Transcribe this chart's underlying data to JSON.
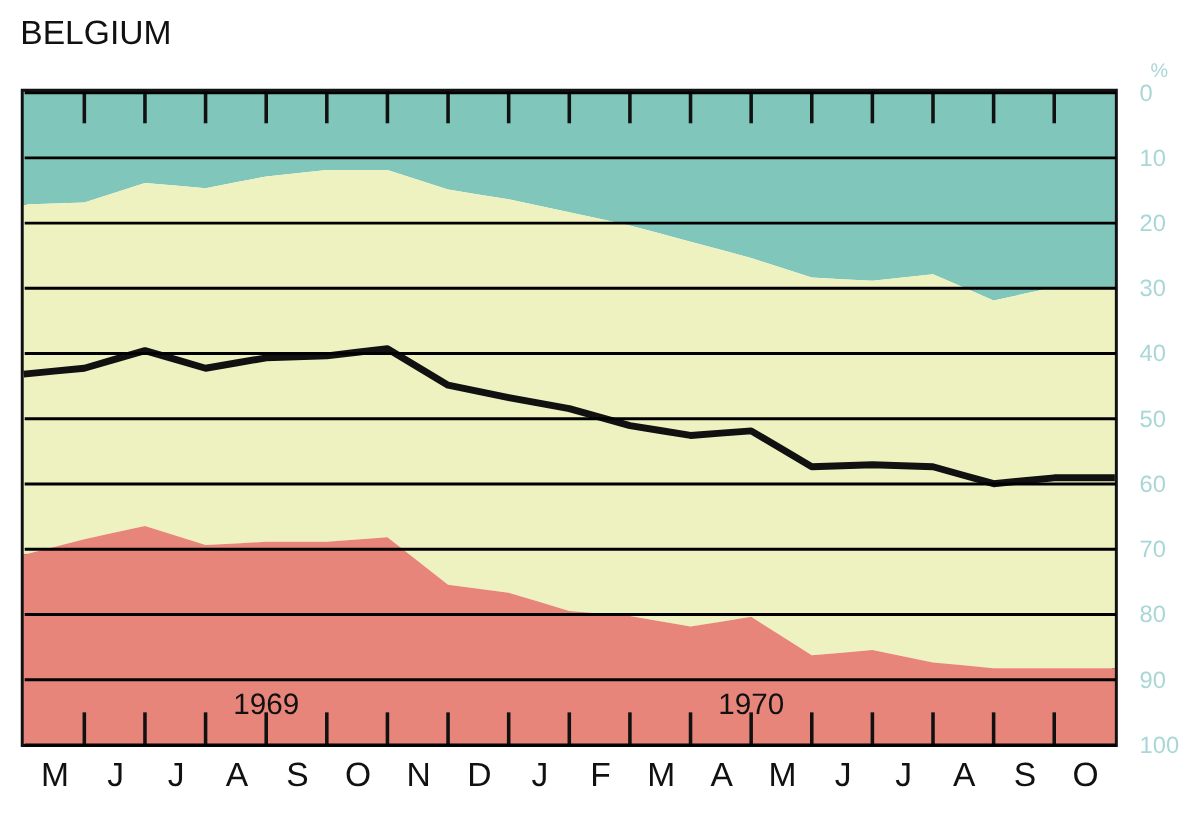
{
  "chart_data": {
    "type": "area",
    "title": "BELGIUM",
    "ylabel": "%",
    "stacked": true,
    "categories": [
      null,
      "M",
      null,
      "J",
      null,
      "J",
      null,
      "A",
      null,
      "S",
      null,
      "O",
      null,
      "N",
      null,
      "D",
      null,
      "J",
      null,
      "F",
      null,
      "M",
      null,
      "A",
      null,
      "M",
      null,
      "J",
      null,
      "J",
      null,
      "A",
      null,
      "S",
      null,
      "O",
      null
    ],
    "series": [
      {
        "color": "#80c6ba",
        "values": [
          17.3,
          17.15,
          17,
          15.5,
          14,
          14.4,
          14.8,
          13.9,
          13,
          12.5,
          12,
          12,
          12,
          13.5,
          15,
          15.75,
          16.5,
          17.5,
          18.5,
          19.5,
          20.5,
          21.75,
          23,
          24.25,
          25.5,
          27,
          28.5,
          28.75,
          29,
          28.5,
          28,
          30,
          32,
          31,
          30,
          30,
          30
        ]
      },
      {
        "color": "#eef2c0",
        "values": [
          53.7,
          52.65,
          51.6,
          52.1,
          52.6,
          53.65,
          54.7,
          55.35,
          56,
          56.5,
          57,
          56.65,
          56.3,
          58.45,
          60.6,
          60.45,
          60.3,
          60.7,
          61.1,
          60.5,
          59.9,
          59.45,
          59,
          57,
          55,
          56.45,
          57.9,
          57.25,
          56.6,
          58.05,
          59.5,
          57.95,
          56.4,
          57.4,
          58.4,
          58.4,
          58.4
        ]
      },
      {
        "color": "#e8857a",
        "values": [
          29,
          30.2,
          31.4,
          32.4,
          33.4,
          31.95,
          30.5,
          30.75,
          31,
          31,
          31,
          31.35,
          31.7,
          28.05,
          24.4,
          23.8,
          23.2,
          21.8,
          20.4,
          20,
          19.6,
          18.8,
          18,
          18.75,
          19.5,
          16.55,
          13.6,
          14,
          14.4,
          13.45,
          12.5,
          12.05,
          11.6,
          11.6,
          11.6,
          11.6,
          11.6
        ]
      },
      {
        "type": "line",
        "color": "#111111",
        "values": [
          43.3,
          42.85,
          42.4,
          41.05,
          39.7,
          41.05,
          42.4,
          41.6,
          40.8,
          40.65,
          40.5,
          39.95,
          39.4,
          42.2,
          45,
          45.95,
          46.9,
          47.75,
          48.6,
          49.9,
          51.2,
          51.95,
          52.7,
          52.35,
          52,
          54.75,
          57.5,
          57.35,
          57.2,
          57.35,
          57.5,
          58.8,
          60.1,
          59.65,
          59.2,
          59.2,
          59.2
        ]
      }
    ],
    "ylim": [
      100,
      0
    ],
    "yticks": [
      0,
      10,
      20,
      30,
      40,
      50,
      60,
      70,
      80,
      90,
      100
    ],
    "grid": "y",
    "marker": "none",
    "line_style": "solid",
    "annotations": [
      "1969",
      "1970"
    ]
  }
}
